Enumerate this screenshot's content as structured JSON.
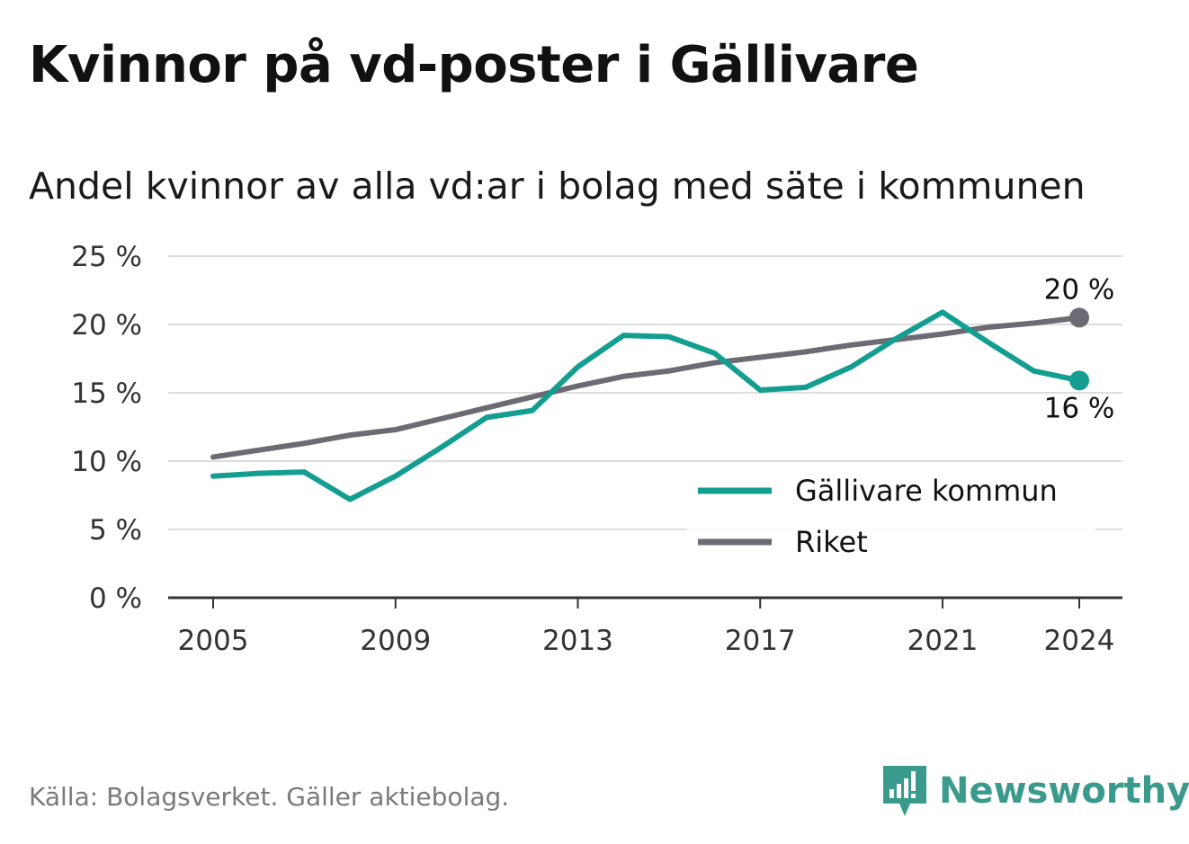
{
  "title": "Kvinnor på vd-poster i Gällivare",
  "subtitle": "Andel kvinnor av alla vd:ar i bolag med säte i kommunen",
  "source": "Källa: Bolagsverket. Gäller aktiebolag.",
  "brand": {
    "name": "Newsworthy",
    "icon": "newsworthy-logo-icon"
  },
  "colors": {
    "gallivare": "#139e91",
    "riket": "#6c6b74",
    "grid": "#dddddd",
    "axis": "#333333"
  },
  "chart_data": {
    "type": "line",
    "x": [
      2005,
      2006,
      2007,
      2008,
      2009,
      2010,
      2011,
      2012,
      2013,
      2014,
      2015,
      2016,
      2017,
      2018,
      2019,
      2020,
      2021,
      2022,
      2023,
      2024
    ],
    "xticks": [
      "2005",
      "2009",
      "2013",
      "2017",
      "2021",
      "2024"
    ],
    "yticks": [
      "0 %",
      "5 %",
      "10 %",
      "15 %",
      "20 %",
      "25 %"
    ],
    "ylim": [
      0,
      25
    ],
    "grid": true,
    "legend_position": "bottom-right",
    "series": [
      {
        "name": "Gällivare kommun",
        "color": "#139e91",
        "values": [
          8.9,
          9.1,
          9.2,
          7.2,
          8.9,
          11.0,
          13.2,
          13.7,
          16.9,
          19.2,
          19.1,
          17.9,
          15.2,
          15.4,
          16.9,
          19.0,
          20.9,
          18.7,
          16.6,
          15.9
        ],
        "end_label": "16 %"
      },
      {
        "name": "Riket",
        "color": "#6c6b74",
        "values": [
          10.3,
          10.8,
          11.3,
          11.9,
          12.3,
          13.1,
          13.9,
          14.7,
          15.5,
          16.2,
          16.6,
          17.2,
          17.6,
          18.0,
          18.5,
          18.9,
          19.3,
          19.8,
          20.1,
          20.5
        ],
        "end_label": "20 %"
      }
    ]
  }
}
